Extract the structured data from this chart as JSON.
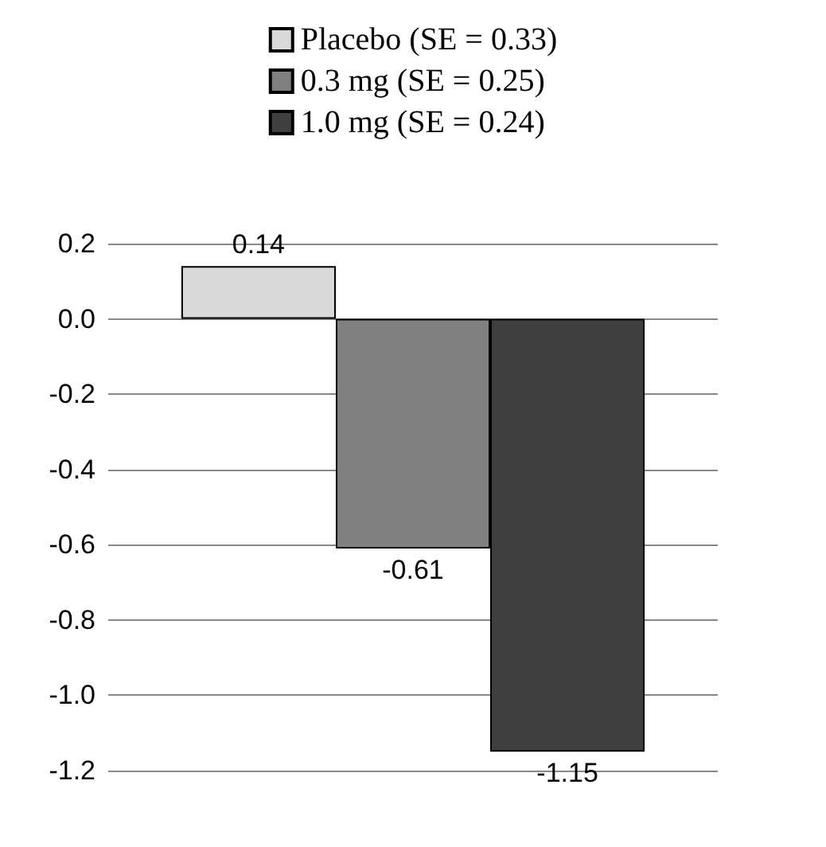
{
  "chart_data": {
    "type": "bar",
    "categories": [
      null
    ],
    "series": [
      {
        "name": "Placebo (SE = 0.33)",
        "color": "#d9d9d9",
        "values": [
          0.14
        ]
      },
      {
        "name": "0.3 mg (SE = 0.25)",
        "color": "#808080",
        "values": [
          -0.61
        ]
      },
      {
        "name": "1.0 mg (SE = 0.24)",
        "color": "#404040",
        "values": [
          -1.15
        ]
      }
    ],
    "ylim": [
      -1.2,
      0.2
    ],
    "yticks": [
      0.2,
      {
        "value": 0,
        "label": "0.0"
      },
      -0.2,
      -0.4,
      -0.6,
      -0.8,
      {
        "value": -1,
        "label": "-1.0"
      },
      -1.2
    ],
    "grid": "y",
    "legend": "top",
    "data_labels": true
  }
}
